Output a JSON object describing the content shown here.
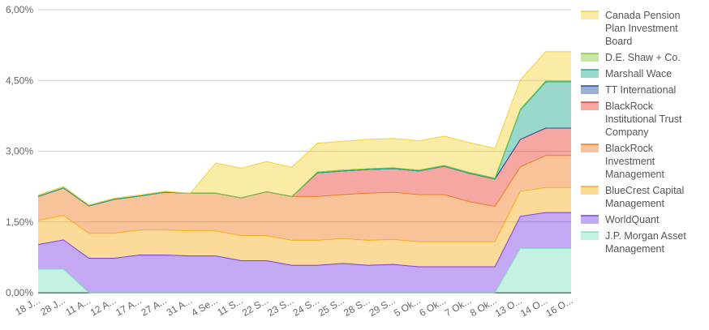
{
  "chart_data": {
    "type": "area",
    "stacked": true,
    "title": "",
    "xlabel": "",
    "ylabel": "",
    "ylim": [
      0,
      6
    ],
    "y_ticks": [
      "0,00%",
      "1,50%",
      "3,00%",
      "4,50%",
      "6,00%"
    ],
    "y_tick_values": [
      0,
      1.5,
      3,
      4.5,
      6
    ],
    "grid": true,
    "legend_position": "right",
    "categories": [
      "18 J...",
      "28 J...",
      "11 A...",
      "12 A...",
      "17 A...",
      "27 A...",
      "31 A...",
      "4 Se...",
      "11 S...",
      "22 S...",
      "23 S...",
      "24 S...",
      "25 S...",
      "28 S...",
      "29 S...",
      "5 Ok...",
      "6 Ok...",
      "7 Ok...",
      "8 Ok...",
      "13 O...",
      "14 O...",
      "16 O..."
    ],
    "series": [
      {
        "name": "J.P. Morgan Asset Management",
        "color": "#7fe0bf",
        "values": [
          0.5,
          0.5,
          0,
          0,
          0,
          0,
          0,
          0,
          0,
          0,
          0,
          0,
          0,
          0,
          0,
          0,
          0,
          0,
          0,
          0.94,
          0.94,
          0.94
        ]
      },
      {
        "name": "WorldQuant",
        "color": "#7b3fe4",
        "values": [
          0.52,
          0.62,
          0.73,
          0.73,
          0.8,
          0.8,
          0.78,
          0.78,
          0.68,
          0.68,
          0.58,
          0.58,
          0.62,
          0.58,
          0.6,
          0.55,
          0.55,
          0.55,
          0.55,
          0.68,
          0.76,
          0.76
        ]
      },
      {
        "name": "BlueCrest Capital Management",
        "color": "#f9ad1c",
        "values": [
          0.51,
          0.52,
          0.53,
          0.53,
          0.53,
          0.53,
          0.53,
          0.53,
          0.53,
          0.53,
          0.53,
          0.53,
          0.53,
          0.53,
          0.53,
          0.53,
          0.53,
          0.53,
          0.53,
          0.53,
          0.53,
          0.53
        ]
      },
      {
        "name": "BlackRock Investment Management",
        "color": "#f07b1c",
        "values": [
          0.51,
          0.58,
          0.58,
          0.72,
          0.72,
          0.8,
          0.8,
          0.8,
          0.8,
          0.93,
          0.93,
          0.93,
          0.93,
          1.0,
          1.0,
          1.0,
          1.0,
          0.85,
          0.75,
          0.52,
          0.68,
          0.68
        ]
      },
      {
        "name": "BlackRock Institutional Trust Company",
        "color": "#ee3b2f",
        "values": [
          0,
          0,
          0,
          0,
          0,
          0,
          0,
          0,
          0,
          0,
          0,
          0.5,
          0.5,
          0.5,
          0.5,
          0.5,
          0.6,
          0.6,
          0.58,
          0.58,
          0.58,
          0.58
        ]
      },
      {
        "name": "TT International",
        "color": "#1f4e9c",
        "values": [
          0,
          0,
          0,
          0,
          0,
          0,
          0,
          0,
          0,
          0,
          0,
          0,
          0,
          0,
          0,
          0,
          0,
          0,
          0,
          0,
          0,
          0
        ]
      },
      {
        "name": "Marshall Wace",
        "color": "#21a98e",
        "values": [
          0,
          0,
          0,
          0,
          0,
          0,
          0,
          0,
          0,
          0,
          0,
          0,
          0,
          0,
          0,
          0,
          0,
          0,
          0,
          0.62,
          0.98,
          0.98
        ]
      },
      {
        "name": "D.E. Shaw + Co.",
        "color": "#84c83c",
        "values": [
          0.03,
          0.03,
          0.02,
          0.02,
          0.02,
          0.02,
          0,
          0,
          0,
          0,
          0,
          0.02,
          0.02,
          0.02,
          0.02,
          0.02,
          0.02,
          0.02,
          0.02,
          0.02,
          0.02,
          0.02
        ]
      },
      {
        "name": "Canada Pension Plan Investment Board",
        "color": "#f4d23a",
        "values": [
          0,
          0,
          0,
          0,
          0,
          0,
          0,
          0.64,
          0.63,
          0.64,
          0.62,
          0.61,
          0.61,
          0.62,
          0.62,
          0.62,
          0.62,
          0.63,
          0.63,
          0.62,
          0.62,
          0.62
        ]
      }
    ]
  }
}
